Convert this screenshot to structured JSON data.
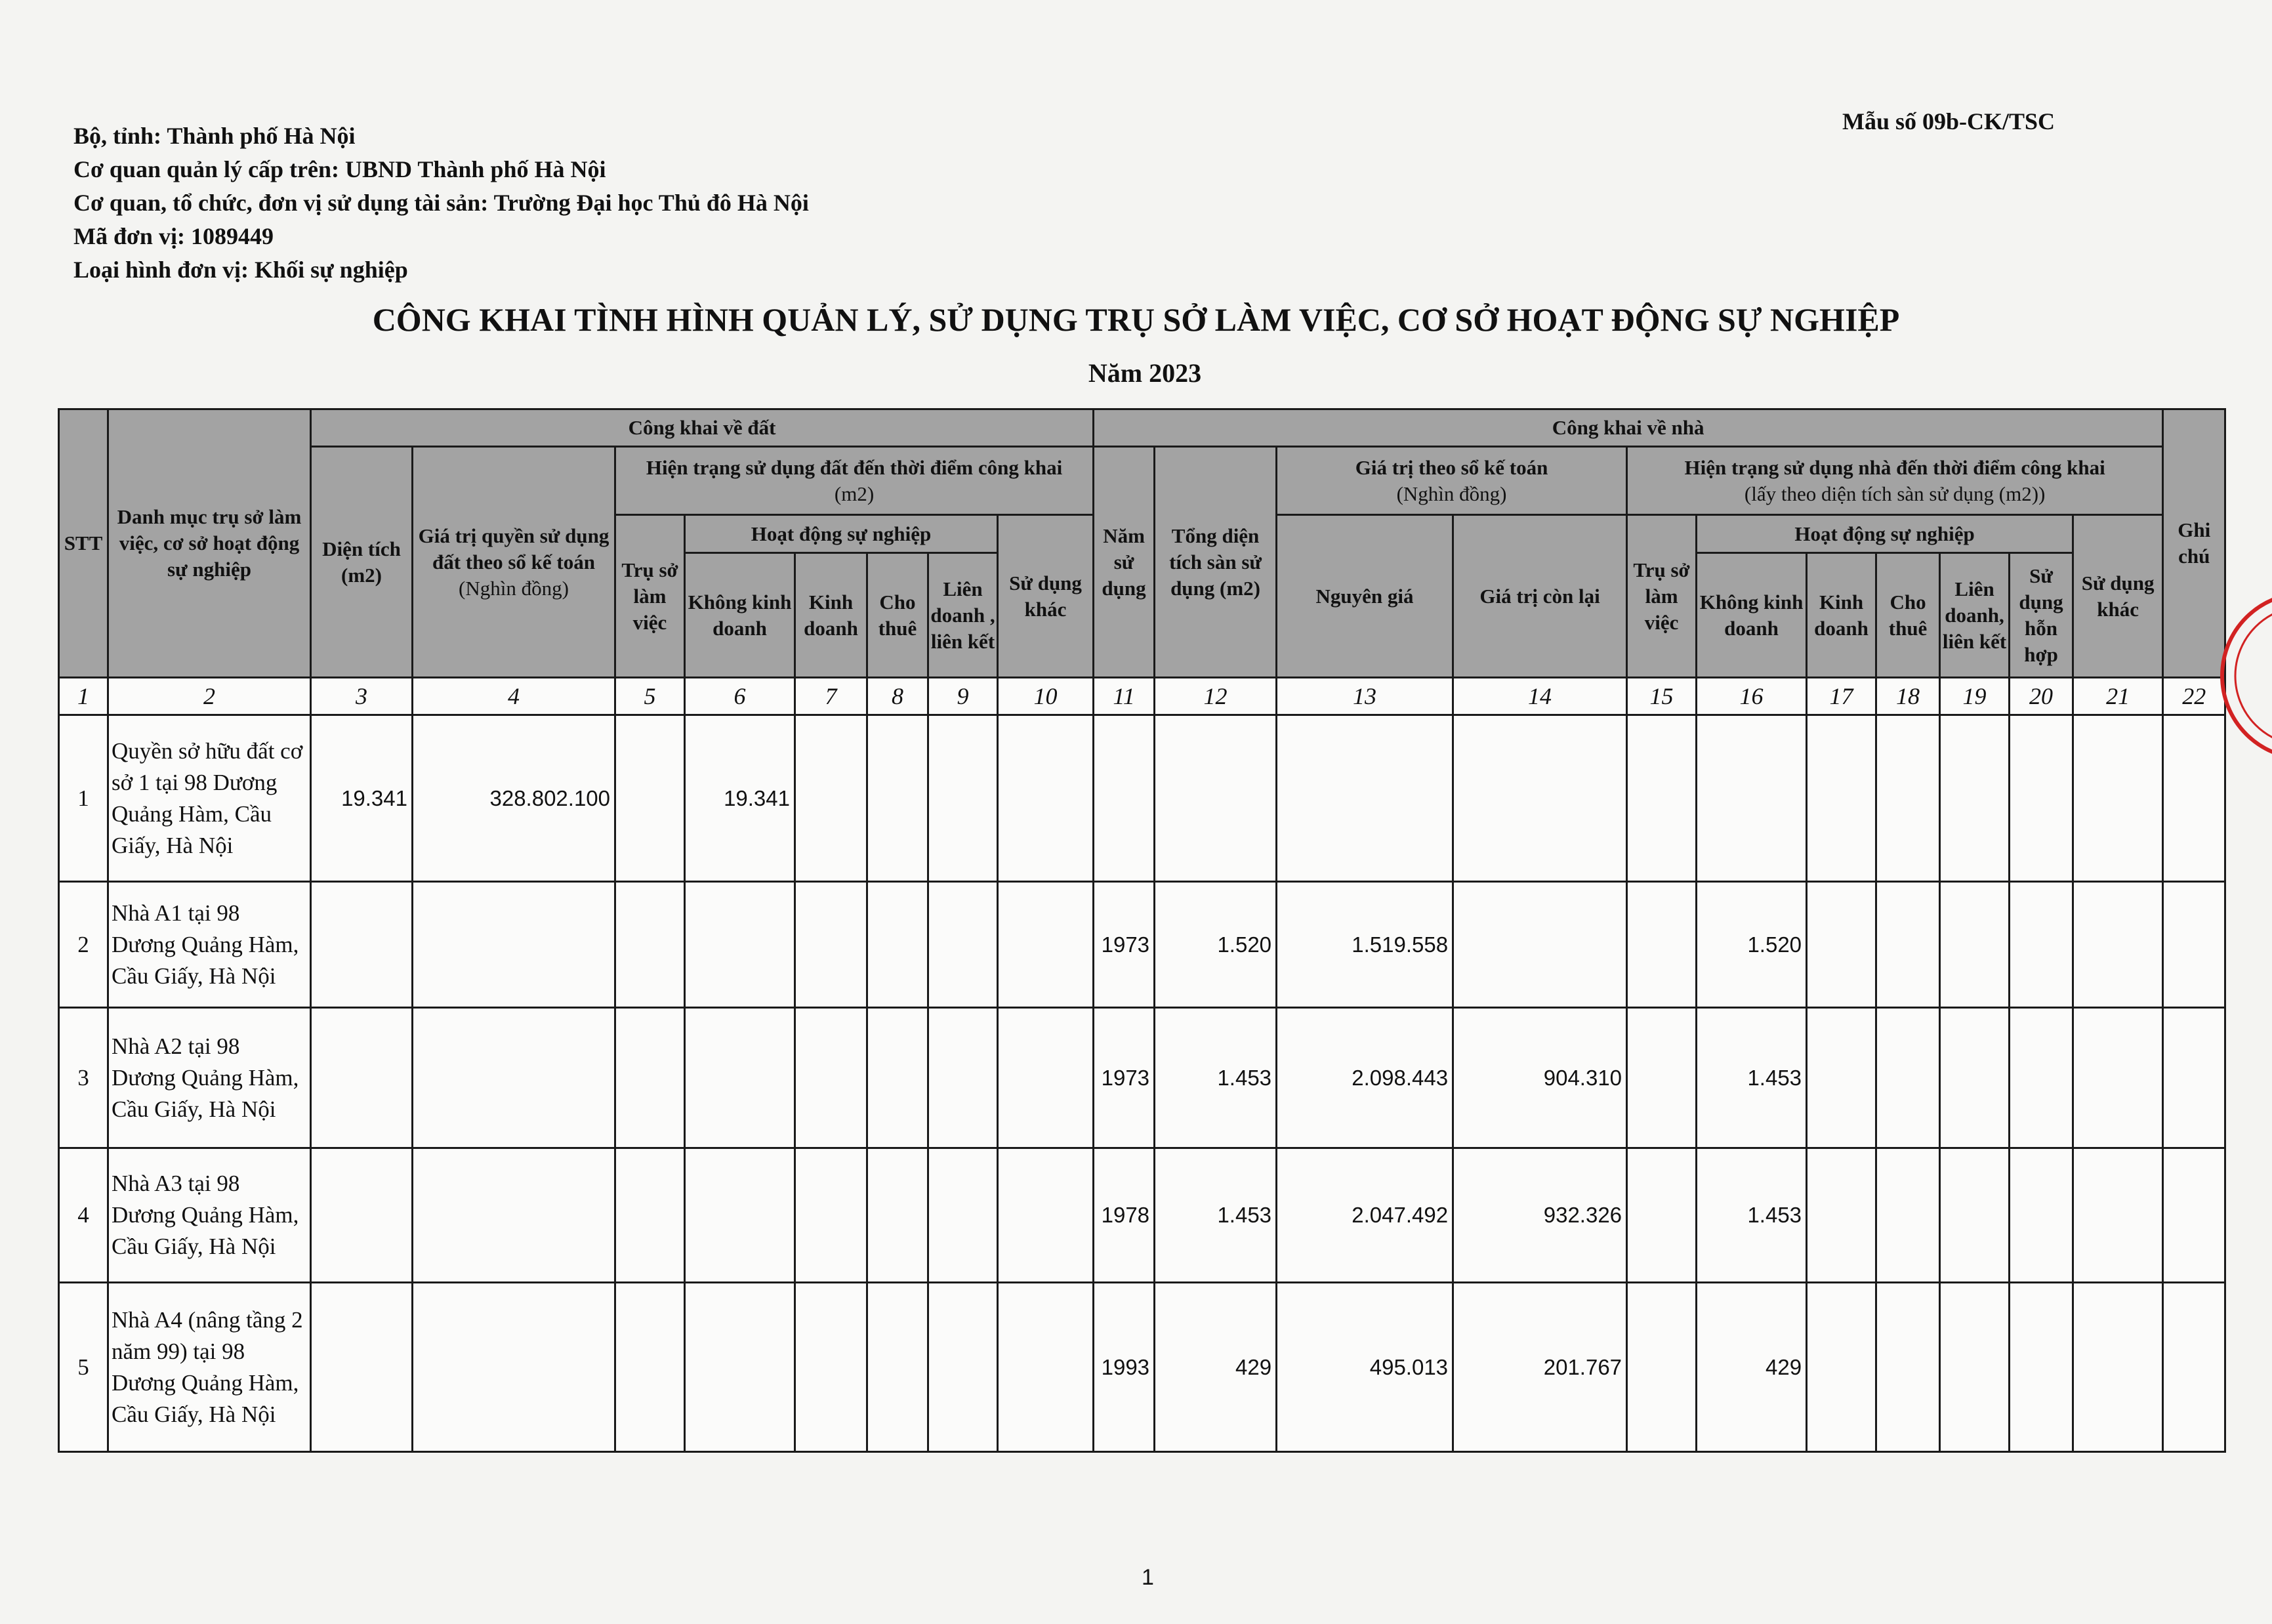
{
  "header": {
    "lines": [
      "Bộ, tỉnh: Thành phố Hà Nội",
      "Cơ quan quản lý cấp trên: UBND Thành phố Hà Nội",
      "Cơ quan, tổ chức, đơn vị sử dụng tài sản: Trường Đại học Thủ đô Hà Nội",
      "Mã đơn vị: 1089449",
      "Loại hình đơn vị: Khối sự nghiệp"
    ],
    "form_no": "Mẫu số 09b-CK/TSC",
    "title": "CÔNG KHAI TÌNH HÌNH QUẢN LÝ, SỬ DỤNG TRỤ SỞ LÀM VIỆC, CƠ SỞ HOẠT ĐỘNG SỰ NGHIỆP",
    "year": "Năm 2023"
  },
  "table": {
    "h": {
      "stt": "STT",
      "name": "Danh mục trụ sở làm việc, cơ sở hoạt động sự nghiệp",
      "land": "Công khai về đất",
      "house": "Công khai về nhà",
      "note": "Ghi chú",
      "land_area": "Diện tích (m2)",
      "land_value": "Giá trị quyền sử dụng đất theo sổ kế toán",
      "land_value_unit": "(Nghìn đồng)",
      "land_status": "Hiện trạng sử dụng đất đến thời điểm công khai",
      "land_status_unit": "(m2)",
      "year_used": "Năm sử dụng",
      "floor_area": "Tổng diện tích sàn sử dụng (m2)",
      "book_value": "Giá trị theo sổ kế toán",
      "book_value_unit": "(Nghìn đồng)",
      "house_status": "Hiện trạng sử dụng nhà đến thời điểm công khai",
      "house_status_unit": "(lấy theo diện tích sàn sử dụng (m2))",
      "office": "Trụ sở làm việc",
      "public_activity": "Hoạt động sự nghiệp",
      "other_use": "Sử dụng khác",
      "original_cost": "Nguyên giá",
      "residual": "Giá trị còn lại",
      "non_business": "Không kinh doanh",
      "business": "Kinh doanh",
      "lease": "Cho thuê",
      "jv_land": "Liên doanh , liên kết",
      "jv_house": "Liên doanh, liên kết",
      "mixed": "Sử dụng hỗn hợp"
    },
    "column_numbers": [
      "1",
      "2",
      "3",
      "4",
      "5",
      "6",
      "7",
      "8",
      "9",
      "10",
      "11",
      "12",
      "13",
      "14",
      "15",
      "16",
      "17",
      "18",
      "19",
      "20",
      "21",
      "22"
    ],
    "rows": [
      {
        "stt": "1",
        "name": "Quyền sở hữu đất cơ sở 1 tại 98 Dương Quảng Hàm, Cầu Giấy, Hà Nội",
        "c3": "19.341",
        "c4": "328.802.100",
        "c6": "19.341",
        "c11": "",
        "c12": "",
        "c13": "",
        "c14": "",
        "c16": ""
      },
      {
        "stt": "2",
        "name": "Nhà A1 tại 98 Dương Quảng Hàm, Cầu Giấy, Hà Nội",
        "c3": "",
        "c4": "",
        "c6": "",
        "c11": "1973",
        "c12": "1.520",
        "c13": "1.519.558",
        "c14": "",
        "c16": "1.520"
      },
      {
        "stt": "3",
        "name": "Nhà A2 tại 98 Dương Quảng Hàm, Cầu Giấy, Hà Nội",
        "c3": "",
        "c4": "",
        "c6": "",
        "c11": "1973",
        "c12": "1.453",
        "c13": "2.098.443",
        "c14": "904.310",
        "c16": "1.453"
      },
      {
        "stt": "4",
        "name": "Nhà A3 tại 98 Dương Quảng Hàm, Cầu Giấy, Hà Nội",
        "c3": "",
        "c4": "",
        "c6": "",
        "c11": "1978",
        "c12": "1.453",
        "c13": "2.047.492",
        "c14": "932.326",
        "c16": "1.453"
      },
      {
        "stt": "5",
        "name": "Nhà A4 (nâng tầng 2 năm 99) tại 98 Dương Quảng Hàm, Cầu Giấy, Hà Nội",
        "c3": "",
        "c4": "",
        "c6": "",
        "c11": "1993",
        "c12": "429",
        "c13": "495.013",
        "c14": "201.767",
        "c16": "429"
      }
    ]
  },
  "page_number": "1",
  "colors": {
    "header_fill": "#a3a3a3",
    "stamp": "#d22222"
  }
}
